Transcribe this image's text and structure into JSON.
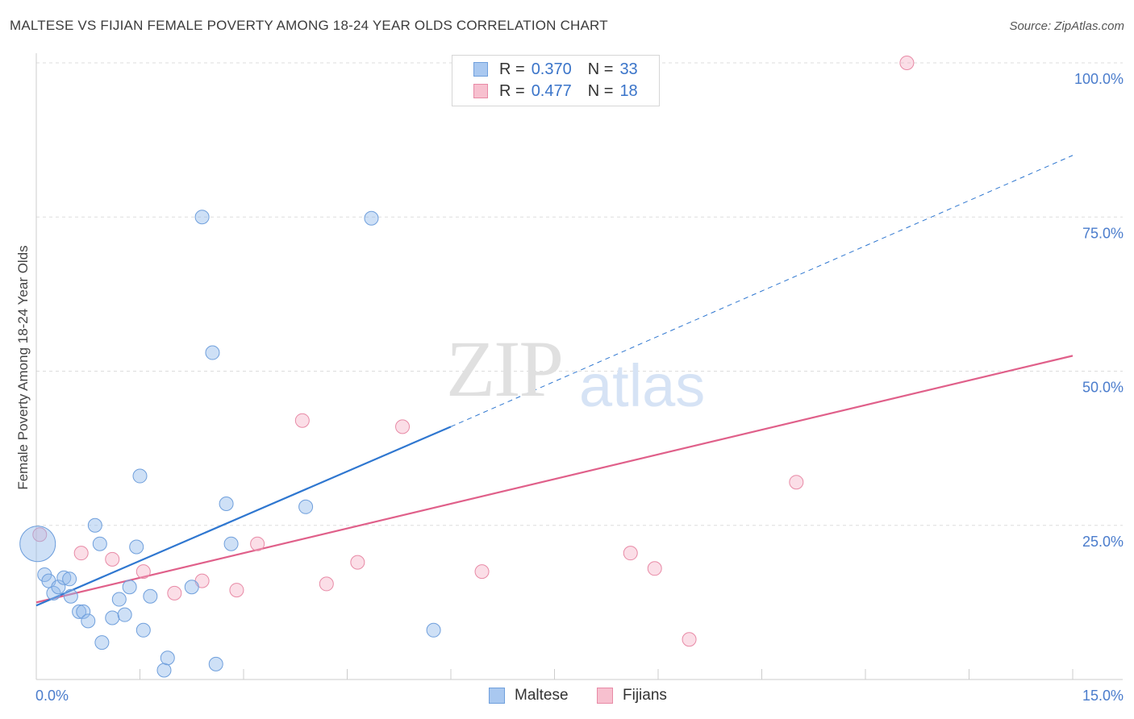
{
  "header": {
    "title": "MALTESE VS FIJIAN FEMALE POVERTY AMONG 18-24 YEAR OLDS CORRELATION CHART",
    "source": "Source: ZipAtlas.com"
  },
  "watermark": {
    "zip": "ZIP",
    "atlas": "atlas"
  },
  "legend": {
    "rows": [
      {
        "r_label": "R =",
        "r_value": "0.370",
        "n_label": "N =",
        "n_value": "33",
        "color": "#a9c8f0",
        "border": "#6f9fdc"
      },
      {
        "r_label": "R =",
        "r_value": "0.477",
        "n_label": "N =",
        "n_value": "18",
        "color": "#f7c0cf",
        "border": "#e88aa6"
      }
    ]
  },
  "bottom_legend": {
    "maltese": "Maltese",
    "fijians": "Fijians"
  },
  "colors": {
    "maltese_fill": "rgba(147,186,236,0.45)",
    "maltese_stroke": "#6f9fdc",
    "maltese_line": "#2f77d0",
    "fijian_fill": "rgba(245,172,194,0.40)",
    "fijian_stroke": "#e88aa6",
    "fijian_line": "#e0608a",
    "grid": "#dddddd",
    "tick_text": "#4a7ccc"
  },
  "chart_data": {
    "type": "scatter",
    "title": "MALTESE VS FIJIAN FEMALE POVERTY AMONG 18-24 YEAR OLDS CORRELATION CHART",
    "xlabel": "",
    "ylabel": "Female Poverty Among 18-24 Year Olds",
    "xlim": [
      0,
      15
    ],
    "ylim": [
      0,
      100
    ],
    "x_tick_labels": [
      "0.0%",
      "15.0%"
    ],
    "y_ticks": [
      25,
      50,
      75,
      100
    ],
    "y_tick_labels": [
      "25.0%",
      "50.0%",
      "75.0%",
      "100.0%"
    ],
    "series": [
      {
        "name": "Maltese",
        "points": [
          [
            0.02,
            22.0
          ],
          [
            0.12,
            17.0
          ],
          [
            0.18,
            16.0
          ],
          [
            0.25,
            14.0
          ],
          [
            0.32,
            15.0
          ],
          [
            0.4,
            16.5
          ],
          [
            0.48,
            16.3
          ],
          [
            0.5,
            13.5
          ],
          [
            0.62,
            11.0
          ],
          [
            0.68,
            11.0
          ],
          [
            0.75,
            9.5
          ],
          [
            0.85,
            25.0
          ],
          [
            0.92,
            22.0
          ],
          [
            0.95,
            6.0
          ],
          [
            1.1,
            10.0
          ],
          [
            1.2,
            13.0
          ],
          [
            1.28,
            10.5
          ],
          [
            1.35,
            15.0
          ],
          [
            1.45,
            21.5
          ],
          [
            1.5,
            33.0
          ],
          [
            1.55,
            8.0
          ],
          [
            1.65,
            13.5
          ],
          [
            1.85,
            1.5
          ],
          [
            1.9,
            3.5
          ],
          [
            2.25,
            15.0
          ],
          [
            2.4,
            75.0
          ],
          [
            2.55,
            53.0
          ],
          [
            2.6,
            2.5
          ],
          [
            2.75,
            28.5
          ],
          [
            2.82,
            22.0
          ],
          [
            3.9,
            28.0
          ],
          [
            4.85,
            74.8
          ],
          [
            5.75,
            8.0
          ]
        ],
        "sizes": [
          3,
          1,
          1,
          1,
          1,
          1,
          1,
          1,
          1,
          1,
          1,
          1,
          1,
          1,
          1,
          1,
          1,
          1,
          1,
          1,
          1,
          1,
          1,
          1,
          1,
          1,
          1,
          1,
          1,
          1,
          1,
          1,
          1
        ],
        "trend": {
          "x": [
            0.0,
            6.0
          ],
          "y": [
            12.0,
            41.0
          ]
        },
        "trend_extension": {
          "x": [
            6.0,
            15.0
          ],
          "y": [
            41.0,
            85.0
          ]
        }
      },
      {
        "name": "Fijians",
        "points": [
          [
            0.05,
            23.5
          ],
          [
            0.65,
            20.5
          ],
          [
            1.1,
            19.5
          ],
          [
            1.55,
            17.5
          ],
          [
            2.0,
            14.0
          ],
          [
            2.4,
            16.0
          ],
          [
            2.9,
            14.5
          ],
          [
            3.2,
            22.0
          ],
          [
            3.85,
            42.0
          ],
          [
            4.2,
            15.5
          ],
          [
            4.65,
            19.0
          ],
          [
            5.3,
            41.0
          ],
          [
            6.45,
            17.5
          ],
          [
            8.6,
            20.5
          ],
          [
            8.95,
            18.0
          ],
          [
            9.45,
            6.5
          ],
          [
            11.0,
            32.0
          ],
          [
            12.6,
            100.0
          ]
        ],
        "sizes": [
          1,
          1,
          1,
          1,
          1,
          1,
          1,
          1,
          1,
          1,
          1,
          1,
          1,
          1,
          1,
          1,
          1,
          1
        ],
        "trend": {
          "x": [
            0.0,
            15.0
          ],
          "y": [
            12.5,
            52.5
          ]
        }
      }
    ]
  }
}
